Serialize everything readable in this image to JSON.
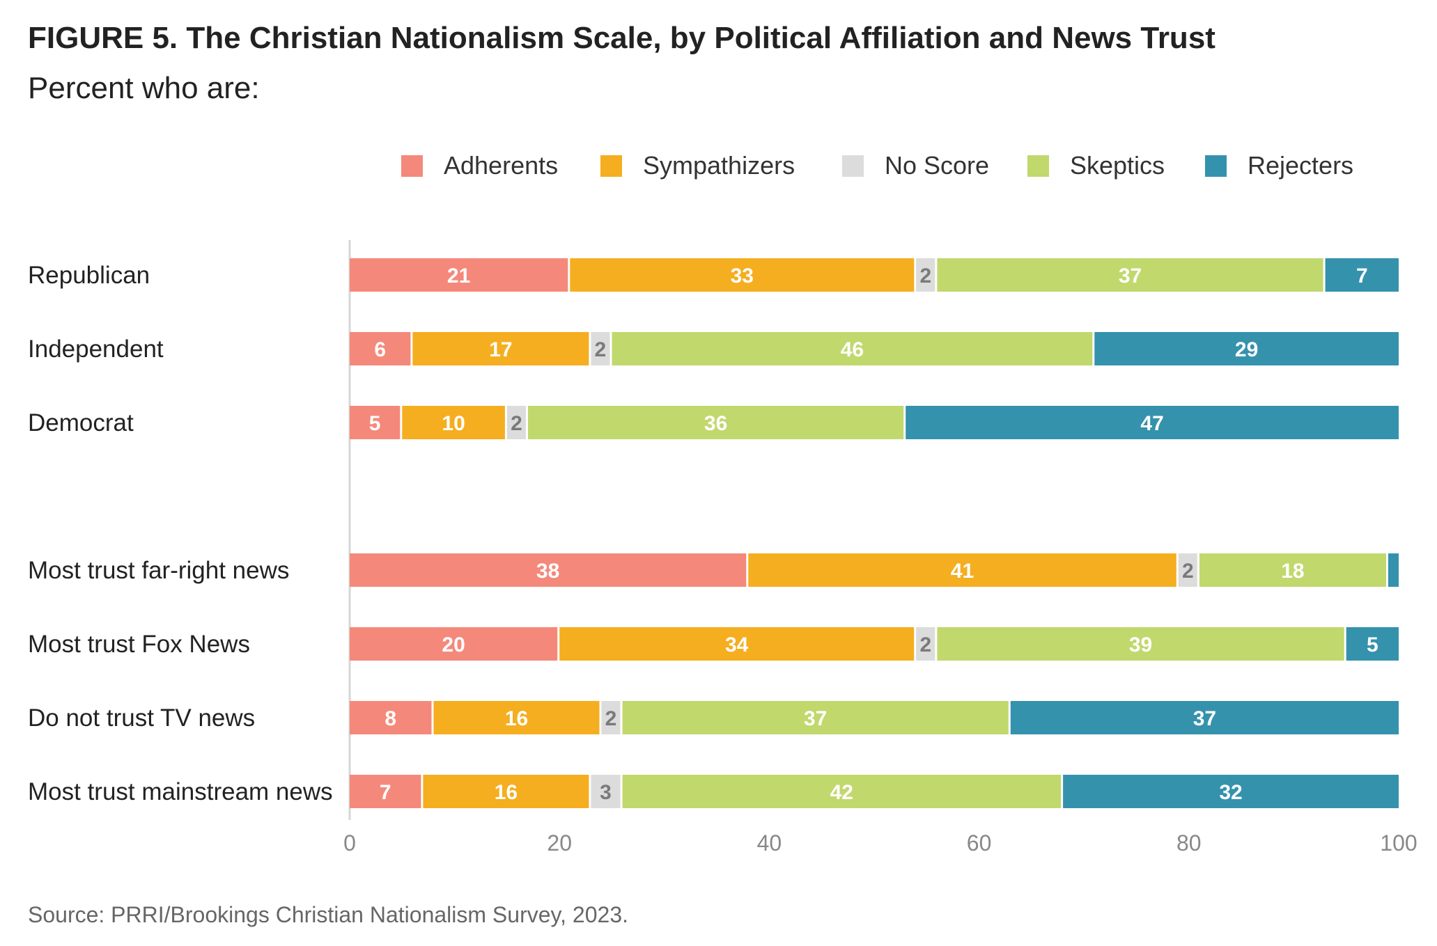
{
  "title": "FIGURE 5. The Christian Nationalism Scale, by Political Affiliation and News Trust",
  "subtitle": "Percent who are:",
  "source": "Source: PRRI/Brookings Christian Nationalism Survey, 2023.",
  "legend": [
    {
      "label": "Adherents",
      "color": "#f4897b"
    },
    {
      "label": "Sympathizers",
      "color": "#f5ae1f"
    },
    {
      "label": "No Score",
      "color": "#dcdcdc"
    },
    {
      "label": "Skeptics",
      "color": "#c1d86d"
    },
    {
      "label": "Rejecters",
      "color": "#3592ad"
    }
  ],
  "chart_data": {
    "type": "bar",
    "orientation": "horizontal",
    "stacked": true,
    "xlim": [
      0,
      100
    ],
    "xticks": [
      0,
      20,
      40,
      60,
      80,
      100
    ],
    "legend_position": "top-right",
    "grid": false,
    "categories": [
      "Republican",
      "Independent",
      "Democrat",
      "Most trust far-right news",
      "Most trust Fox News",
      "Do not trust TV news",
      "Most trust mainstream news"
    ],
    "series": [
      {
        "name": "Adherents",
        "color": "#f4897b",
        "values": [
          21,
          6,
          5,
          38,
          20,
          8,
          7
        ]
      },
      {
        "name": "Sympathizers",
        "color": "#f5ae1f",
        "values": [
          33,
          17,
          10,
          41,
          34,
          16,
          16
        ]
      },
      {
        "name": "No Score",
        "color": "#dcdcdc",
        "values": [
          2,
          2,
          2,
          2,
          2,
          2,
          3
        ]
      },
      {
        "name": "Skeptics",
        "color": "#c1d86d",
        "values": [
          37,
          46,
          36,
          18,
          39,
          37,
          42
        ]
      },
      {
        "name": "Rejecters",
        "color": "#3592ad",
        "values": [
          7,
          29,
          47,
          1,
          5,
          37,
          32
        ]
      }
    ],
    "label_hidden": [
      [],
      [],
      [],
      [
        4
      ],
      [],
      [],
      []
    ]
  }
}
